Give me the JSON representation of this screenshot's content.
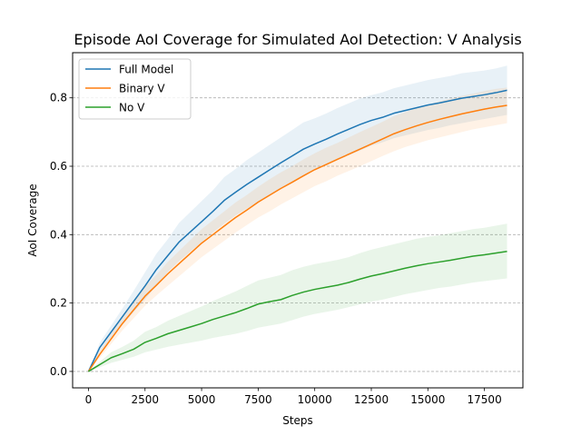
{
  "chart_data": {
    "type": "line",
    "title": "Episode AoI Coverage for Simulated AoI Detection: V Analysis",
    "xlabel": "Steps",
    "ylabel": "AoI Coverage",
    "xlim": [
      -700,
      19200
    ],
    "ylim": [
      -0.048,
      0.932
    ],
    "xticks": [
      0,
      2500,
      5000,
      7500,
      10000,
      12500,
      15000,
      17500
    ],
    "xtick_labels": [
      "0",
      "2500",
      "5000",
      "7500",
      "10000",
      "12500",
      "15000",
      "17500"
    ],
    "yticks": [
      0.0,
      0.2,
      0.4,
      0.6,
      0.8
    ],
    "ytick_labels": [
      "0.0",
      "0.2",
      "0.4",
      "0.6",
      "0.8"
    ],
    "grid": "horizontal dashed",
    "legend_position": "top-left",
    "x": [
      0,
      500,
      1000,
      1500,
      2000,
      2500,
      3000,
      3500,
      4000,
      4500,
      5000,
      5500,
      6000,
      6500,
      7000,
      7500,
      8000,
      8500,
      9000,
      9500,
      10000,
      10500,
      11000,
      11500,
      12000,
      12500,
      13000,
      13500,
      14000,
      14500,
      15000,
      15500,
      16000,
      16500,
      17000,
      17500,
      18000,
      18500
    ],
    "series": [
      {
        "name": "Full Model",
        "color": "#1f77b4",
        "values": [
          0.0,
          0.07,
          0.115,
          0.16,
          0.205,
          0.25,
          0.298,
          0.338,
          0.378,
          0.408,
          0.438,
          0.468,
          0.5,
          0.524,
          0.547,
          0.568,
          0.589,
          0.61,
          0.63,
          0.65,
          0.665,
          0.679,
          0.694,
          0.708,
          0.722,
          0.734,
          0.743,
          0.755,
          0.763,
          0.771,
          0.779,
          0.785,
          0.792,
          0.799,
          0.804,
          0.809,
          0.815,
          0.822
        ],
        "lower": [
          0.0,
          0.056,
          0.096,
          0.136,
          0.174,
          0.21,
          0.252,
          0.29,
          0.322,
          0.35,
          0.378,
          0.406,
          0.432,
          0.456,
          0.476,
          0.496,
          0.516,
          0.536,
          0.554,
          0.572,
          0.59,
          0.604,
          0.618,
          0.632,
          0.646,
          0.66,
          0.67,
          0.682,
          0.69,
          0.698,
          0.706,
          0.712,
          0.72,
          0.726,
          0.732,
          0.738,
          0.744,
          0.75
        ],
        "upper": [
          0.0,
          0.084,
          0.134,
          0.184,
          0.236,
          0.29,
          0.344,
          0.386,
          0.434,
          0.466,
          0.498,
          0.53,
          0.568,
          0.592,
          0.618,
          0.64,
          0.662,
          0.684,
          0.706,
          0.728,
          0.74,
          0.754,
          0.77,
          0.784,
          0.798,
          0.808,
          0.816,
          0.828,
          0.836,
          0.844,
          0.852,
          0.858,
          0.864,
          0.872,
          0.876,
          0.88,
          0.886,
          0.894
        ]
      },
      {
        "name": "Binary V",
        "color": "#ff7f0e",
        "values": [
          0.0,
          0.05,
          0.095,
          0.14,
          0.18,
          0.22,
          0.252,
          0.285,
          0.315,
          0.345,
          0.375,
          0.4,
          0.425,
          0.45,
          0.472,
          0.495,
          0.515,
          0.535,
          0.553,
          0.572,
          0.59,
          0.605,
          0.62,
          0.635,
          0.65,
          0.665,
          0.68,
          0.695,
          0.707,
          0.718,
          0.728,
          0.737,
          0.745,
          0.753,
          0.76,
          0.767,
          0.773,
          0.778
        ],
        "lower": [
          0.0,
          0.04,
          0.08,
          0.12,
          0.156,
          0.192,
          0.222,
          0.25,
          0.278,
          0.306,
          0.334,
          0.358,
          0.382,
          0.406,
          0.428,
          0.45,
          0.468,
          0.488,
          0.506,
          0.524,
          0.542,
          0.556,
          0.572,
          0.586,
          0.6,
          0.615,
          0.63,
          0.644,
          0.656,
          0.666,
          0.676,
          0.684,
          0.692,
          0.7,
          0.708,
          0.714,
          0.72,
          0.726
        ],
        "upper": [
          0.0,
          0.06,
          0.11,
          0.16,
          0.204,
          0.248,
          0.282,
          0.32,
          0.352,
          0.384,
          0.416,
          0.442,
          0.468,
          0.494,
          0.516,
          0.54,
          0.562,
          0.582,
          0.6,
          0.62,
          0.638,
          0.654,
          0.668,
          0.684,
          0.7,
          0.715,
          0.73,
          0.746,
          0.758,
          0.77,
          0.78,
          0.79,
          0.798,
          0.806,
          0.812,
          0.82,
          0.826,
          0.83
        ]
      },
      {
        "name": "No V",
        "color": "#2ca02c",
        "values": [
          0.0,
          0.02,
          0.04,
          0.052,
          0.065,
          0.085,
          0.097,
          0.11,
          0.12,
          0.13,
          0.14,
          0.152,
          0.162,
          0.172,
          0.184,
          0.197,
          0.204,
          0.21,
          0.222,
          0.232,
          0.24,
          0.246,
          0.252,
          0.26,
          0.27,
          0.279,
          0.286,
          0.294,
          0.302,
          0.309,
          0.315,
          0.32,
          0.325,
          0.331,
          0.337,
          0.341,
          0.346,
          0.351
        ],
        "lower": [
          0.0,
          0.012,
          0.025,
          0.034,
          0.043,
          0.056,
          0.064,
          0.072,
          0.078,
          0.084,
          0.09,
          0.098,
          0.104,
          0.11,
          0.118,
          0.128,
          0.134,
          0.14,
          0.15,
          0.16,
          0.168,
          0.174,
          0.18,
          0.188,
          0.196,
          0.204,
          0.21,
          0.218,
          0.226,
          0.232,
          0.238,
          0.244,
          0.248,
          0.254,
          0.26,
          0.264,
          0.268,
          0.272
        ],
        "upper": [
          0.0,
          0.028,
          0.056,
          0.072,
          0.09,
          0.116,
          0.13,
          0.148,
          0.162,
          0.176,
          0.19,
          0.206,
          0.22,
          0.234,
          0.25,
          0.266,
          0.274,
          0.282,
          0.296,
          0.306,
          0.314,
          0.32,
          0.326,
          0.334,
          0.346,
          0.356,
          0.364,
          0.372,
          0.38,
          0.388,
          0.394,
          0.398,
          0.404,
          0.41,
          0.416,
          0.42,
          0.426,
          0.432
        ]
      }
    ]
  }
}
